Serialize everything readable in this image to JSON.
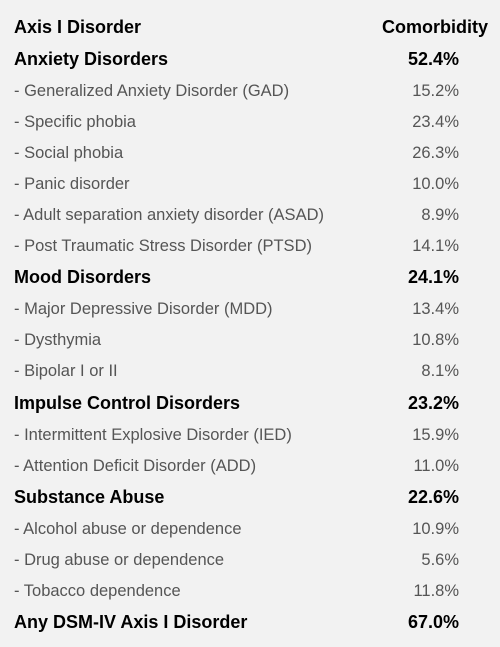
{
  "header": {
    "label": "Axis I Disorder",
    "value": "Comorbidity"
  },
  "rows": [
    {
      "label": "Anxiety Disorders",
      "value": "52.4%"
    },
    {
      "label": "- Generalized Anxiety Disorder (GAD)",
      "value": "15.2%"
    },
    {
      "label": "- Specific phobia",
      "value": "23.4%"
    },
    {
      "label": "- Social phobia",
      "value": "26.3%"
    },
    {
      "label": "- Panic disorder",
      "value": "10.0%"
    },
    {
      "label": "- Adult separation anxiety disorder (ASAD)",
      "value": "8.9%"
    },
    {
      "label": "- Post Traumatic Stress Disorder (PTSD)",
      "value": "14.1%"
    },
    {
      "label": "Mood Disorders",
      "value": "24.1%"
    },
    {
      "label": "- Major Depressive Disorder (MDD)",
      "value": "13.4%"
    },
    {
      "label": "- Dysthymia",
      "value": "10.8%"
    },
    {
      "label": "- Bipolar I or II",
      "value": "8.1%"
    },
    {
      "label": "Impulse Control Disorders",
      "value": "23.2%"
    },
    {
      "label": "- Intermittent Explosive Disorder (IED)",
      "value": "15.9%"
    },
    {
      "label": "- Attention Deficit Disorder (ADD)",
      "value": "11.0%"
    },
    {
      "label": "Substance Abuse",
      "value": "22.6%"
    },
    {
      "label": "- Alcohol abuse or dependence",
      "value": "10.9%"
    },
    {
      "label": "- Drug abuse or dependence",
      "value": "5.6%"
    },
    {
      "label": "- Tobacco dependence",
      "value": "11.8%"
    },
    {
      "label": "Any DSM-IV Axis I Disorder",
      "value": "67.0%"
    }
  ]
}
